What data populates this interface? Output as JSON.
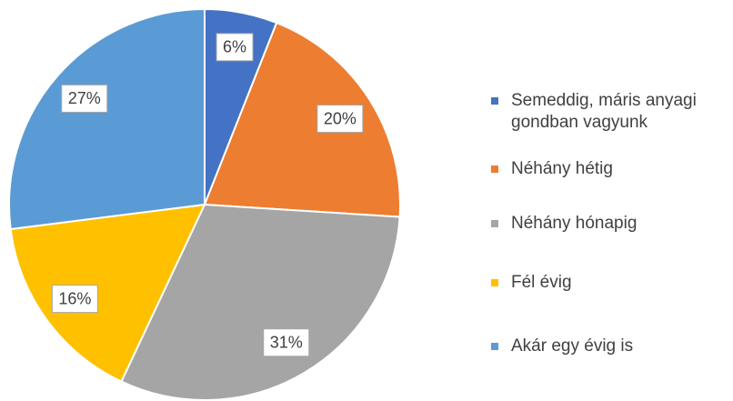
{
  "chart_data": {
    "type": "pie",
    "categories": [
      "Semeddig, máris anyagi gondban vagyunk",
      "Néhány hétig",
      "Néhány hónapig",
      "Fél évig",
      "Akár egy évig is"
    ],
    "values": [
      6,
      20,
      31,
      16,
      27
    ],
    "value_labels": [
      "6%",
      "20%",
      "31%",
      "16%",
      "27%"
    ],
    "colors": [
      "#4472c4",
      "#ed7d31",
      "#a5a5a5",
      "#ffc000",
      "#5b9bd5"
    ],
    "legend": "right"
  }
}
